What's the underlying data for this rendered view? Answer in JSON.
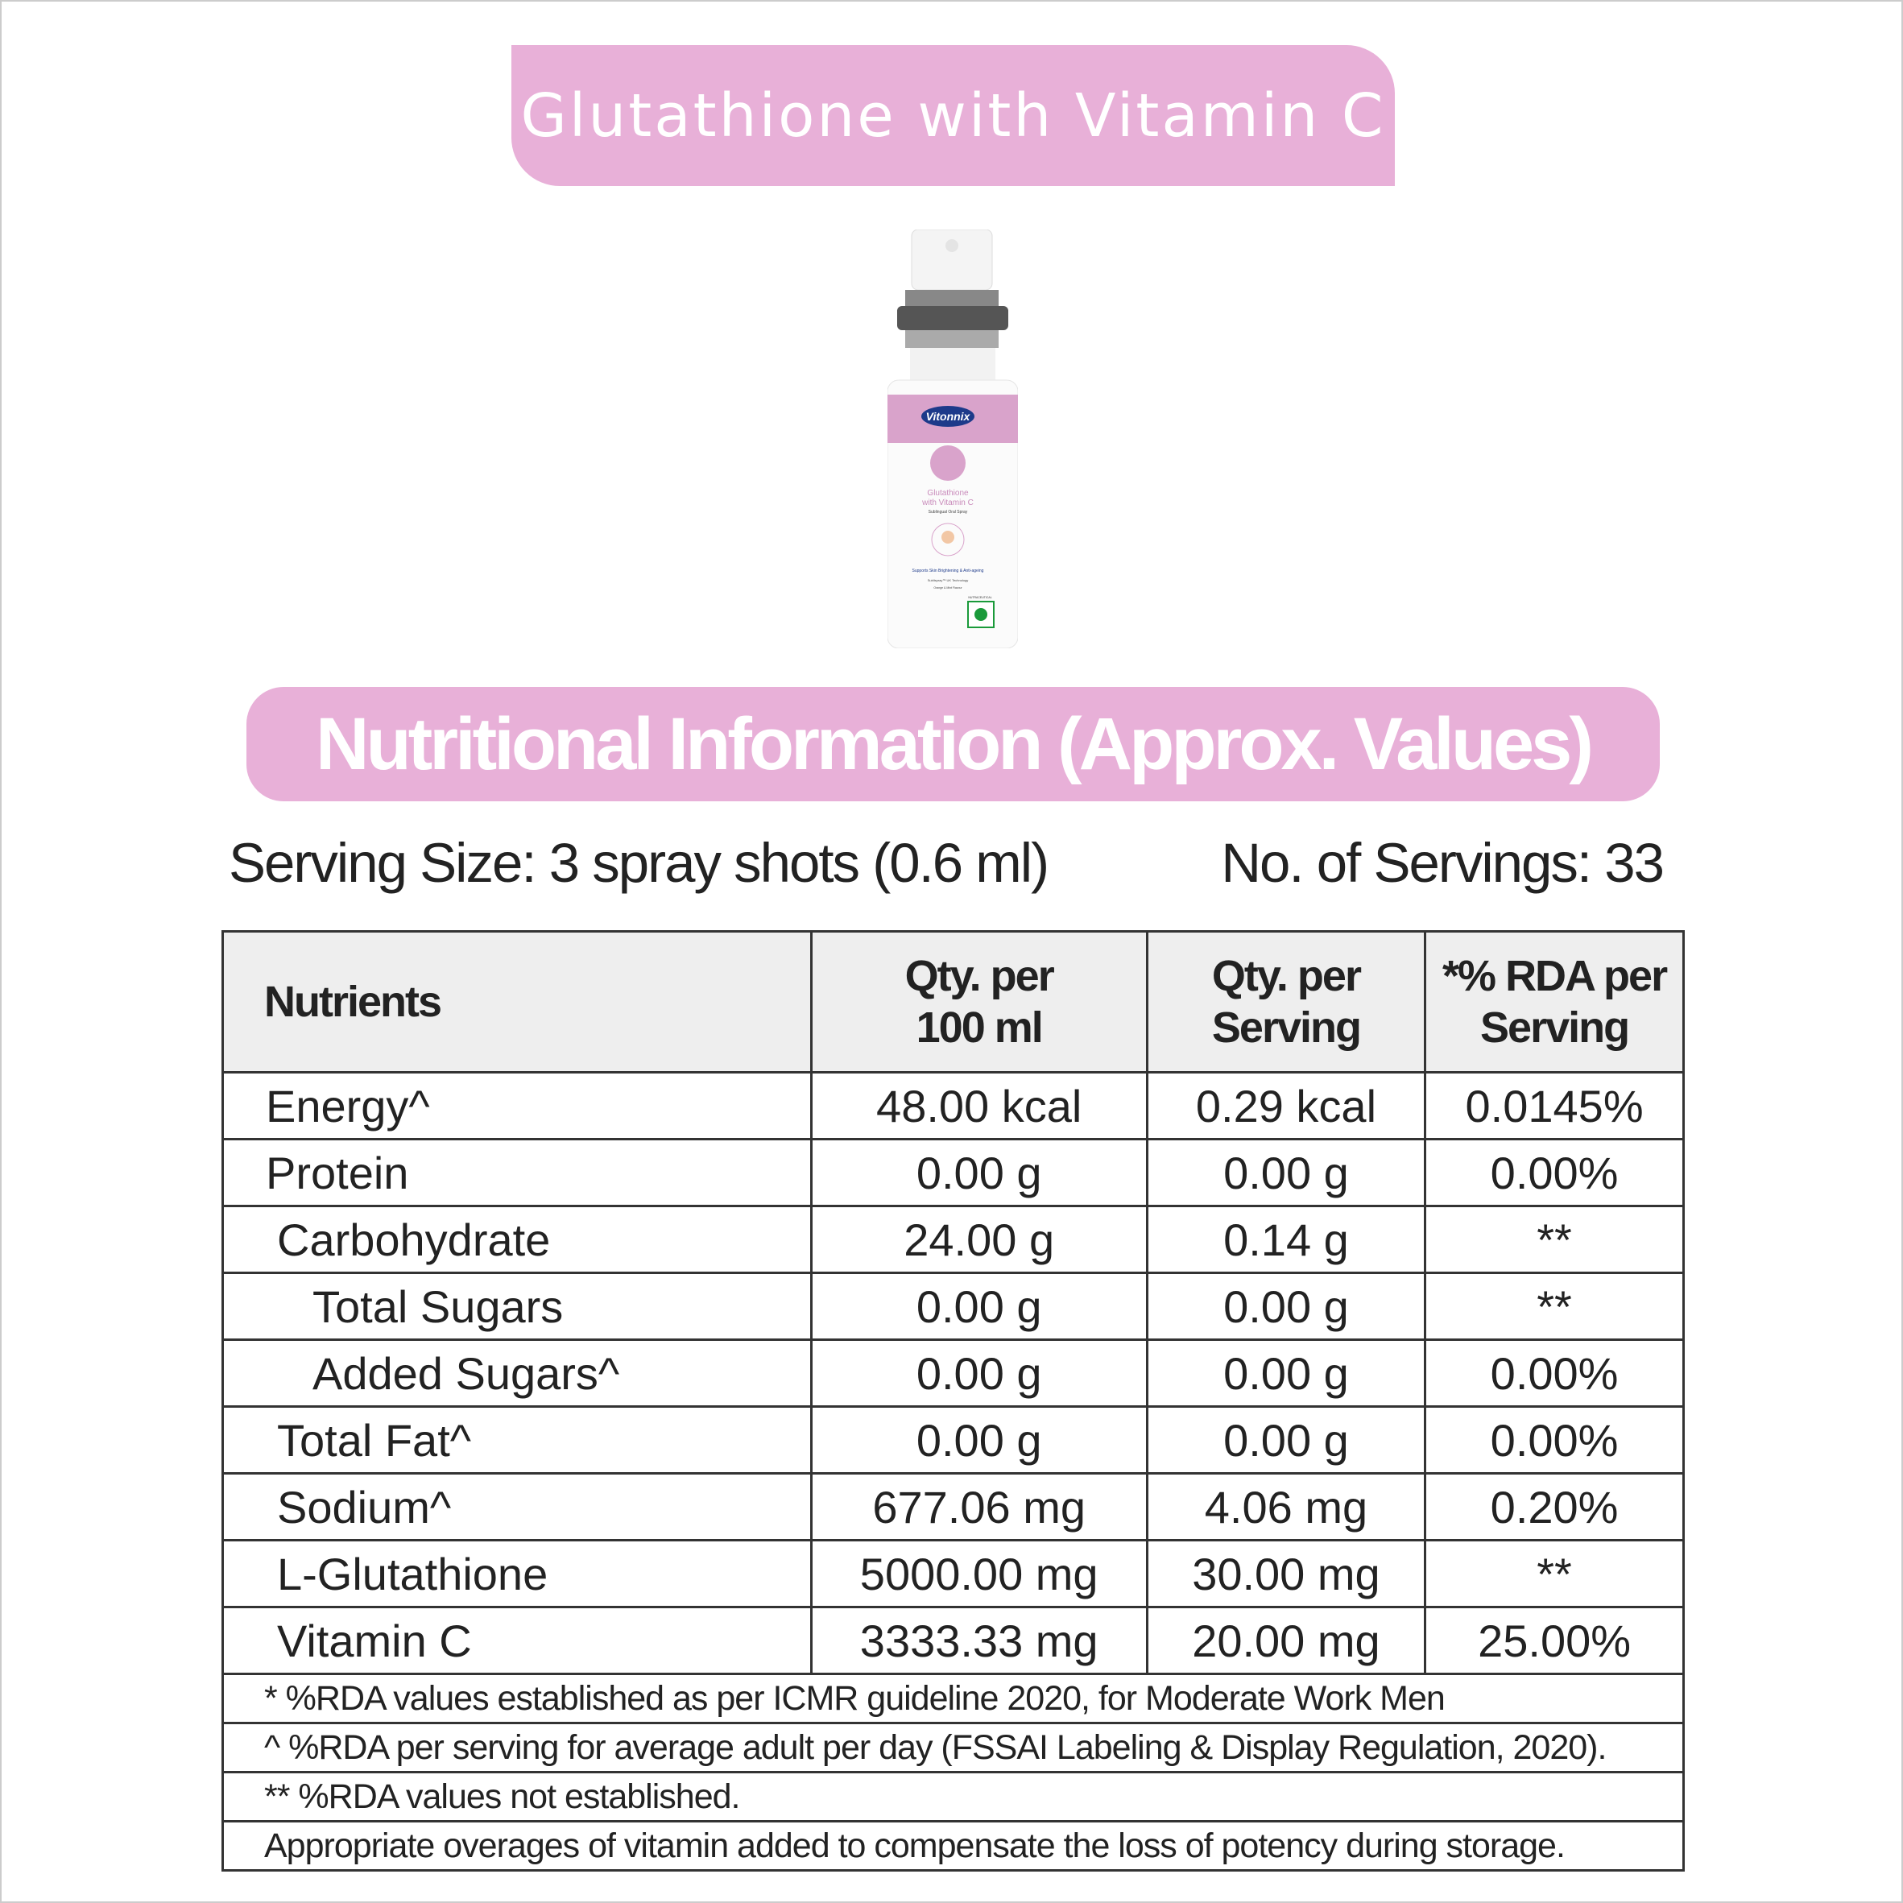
{
  "title": "Glutathione with Vitamin C",
  "bottle": {
    "brand": "Vitonnix",
    "product_line1": "Glutathione",
    "product_line2": "with Vitamin C",
    "subtitle": "Sublingual Oral Spray",
    "claim": "Supports Skin Brightening & Anti-ageing",
    "tech": "Sublispray™ UK Technology",
    "flavour": "Orange & Mint Flavour",
    "category": "NUTRACEUTICAL",
    "accent": "#d9a3cb",
    "veg_mark": "#1a9a3a"
  },
  "heading": "Nutritional Information (Approx. Values)",
  "serving_size": "Serving Size: 3 spray shots (0.6 ml)",
  "servings": "No. of Servings: 33",
  "table": {
    "headers": [
      "Nutrients",
      "Qty. per 100 ml",
      "Qty. per Serving",
      "*% RDA per Serving"
    ],
    "rows": [
      [
        "Energy^",
        "48.00 kcal",
        "0.29 kcal",
        "0.0145%"
      ],
      [
        "Protein",
        "0.00 g",
        "0.00 g",
        "0.00%"
      ],
      [
        "Carbohydrate",
        "24.00 g",
        "0.14 g",
        "**"
      ],
      [
        "Total Sugars",
        "0.00 g",
        "0.00 g",
        "**"
      ],
      [
        "Added Sugars^",
        "0.00 g",
        "0.00 g",
        "0.00%"
      ],
      [
        "Total Fat^",
        "0.00 g",
        "0.00 g",
        "0.00%"
      ],
      [
        "Sodium^",
        "677.06 mg",
        "4.06 mg",
        "0.20%"
      ],
      [
        "L-Glutathione",
        "5000.00 mg",
        "30.00 mg",
        "**"
      ],
      [
        "Vitamin C",
        "3333.33 mg",
        "20.00 mg",
        "25.00%"
      ]
    ],
    "footnotes": [
      "* %RDA values established as per ICMR guideline 2020, for Moderate Work Men",
      "^ %RDA per serving for average adult per day (FSSAI Labeling & Display Regulation, 2020).",
      "** %RDA values not established.",
      "Appropriate overages of vitamin added to compensate the loss of potency during storage."
    ]
  },
  "colors": {
    "pink": "#e8b0d8",
    "header_bg": "#eeeeee"
  }
}
